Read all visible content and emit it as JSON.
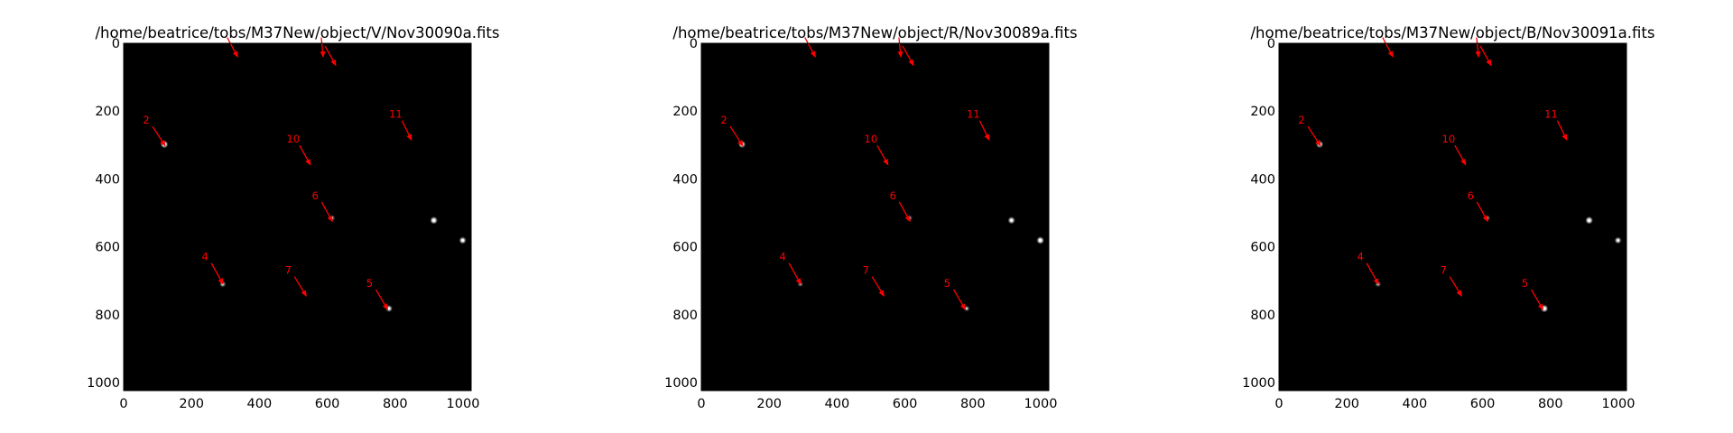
{
  "chart_data": [
    {
      "type": "image",
      "title": "/home/beatrice/tobs/M37New/object/V/Nov30090a.fits",
      "xlim": [
        0,
        1024
      ],
      "ylim": [
        1024,
        0
      ],
      "xticks": [
        "0",
        "200",
        "400",
        "600",
        "800",
        "1000"
      ],
      "yticks": [
        "0",
        "200",
        "400",
        "600",
        "800",
        "1000"
      ],
      "background_color": "#000000",
      "annotation_color": "#ff0000",
      "stars": [
        {
          "x": 120,
          "y": 298,
          "brightness": 1.0
        },
        {
          "x": 914,
          "y": 522,
          "brightness": 1.0
        },
        {
          "x": 999,
          "y": 581,
          "brightness": 0.9
        },
        {
          "x": 292,
          "y": 710,
          "brightness": 0.6
        },
        {
          "x": 782,
          "y": 782,
          "brightness": 0.8
        },
        {
          "x": 614,
          "y": 515,
          "brightness": 0.5
        }
      ],
      "annotations": [
        {
          "label": "",
          "text_xy": [
            292,
            -25
          ],
          "arrow_end": [
            336,
            40
          ]
        },
        {
          "label": "",
          "text_xy": [
            569,
            -25
          ],
          "arrow_end": [
            588,
            40
          ]
        },
        {
          "label": "",
          "text_xy": [
            580,
            0
          ],
          "arrow_end": [
            625,
            65
          ]
        },
        {
          "label": "2",
          "text_xy": [
            72,
            237
          ],
          "arrow_end": [
            122,
            302
          ]
        },
        {
          "label": "10",
          "text_xy": [
            505,
            293
          ],
          "arrow_end": [
            550,
            358
          ]
        },
        {
          "label": "11",
          "text_xy": [
            807,
            220
          ],
          "arrow_end": [
            848,
            285
          ]
        },
        {
          "label": "6",
          "text_xy": [
            570,
            460
          ],
          "arrow_end": [
            615,
            525
          ]
        },
        {
          "label": "4",
          "text_xy": [
            245,
            640
          ],
          "arrow_end": [
            293,
            710
          ]
        },
        {
          "label": "7",
          "text_xy": [
            490,
            680
          ],
          "arrow_end": [
            538,
            745
          ]
        },
        {
          "label": "5",
          "text_xy": [
            730,
            718
          ],
          "arrow_end": [
            778,
            785
          ]
        }
      ]
    },
    {
      "type": "image",
      "title": "/home/beatrice/tobs/M37New/object/R/Nov30089a.fits",
      "xlim": [
        0,
        1024
      ],
      "ylim": [
        1024,
        0
      ],
      "xticks": [
        "0",
        "200",
        "400",
        "600",
        "800",
        "1000"
      ],
      "yticks": [
        "0",
        "200",
        "400",
        "600",
        "800",
        "1000"
      ],
      "background_color": "#000000",
      "annotation_color": "#ff0000",
      "stars": [
        {
          "x": 120,
          "y": 298,
          "brightness": 0.9
        },
        {
          "x": 914,
          "y": 522,
          "brightness": 0.9
        },
        {
          "x": 999,
          "y": 581,
          "brightness": 1.0
        },
        {
          "x": 292,
          "y": 710,
          "brightness": 0.4
        },
        {
          "x": 782,
          "y": 782,
          "brightness": 0.5
        },
        {
          "x": 614,
          "y": 515,
          "brightness": 0.4
        }
      ],
      "annotations": [
        {
          "label": "",
          "text_xy": [
            292,
            -25
          ],
          "arrow_end": [
            336,
            40
          ]
        },
        {
          "label": "",
          "text_xy": [
            569,
            -25
          ],
          "arrow_end": [
            588,
            40
          ]
        },
        {
          "label": "",
          "text_xy": [
            580,
            0
          ],
          "arrow_end": [
            625,
            65
          ]
        },
        {
          "label": "2",
          "text_xy": [
            72,
            237
          ],
          "arrow_end": [
            122,
            302
          ]
        },
        {
          "label": "10",
          "text_xy": [
            505,
            293
          ],
          "arrow_end": [
            550,
            358
          ]
        },
        {
          "label": "11",
          "text_xy": [
            807,
            220
          ],
          "arrow_end": [
            848,
            285
          ]
        },
        {
          "label": "6",
          "text_xy": [
            570,
            460
          ],
          "arrow_end": [
            615,
            525
          ]
        },
        {
          "label": "4",
          "text_xy": [
            245,
            640
          ],
          "arrow_end": [
            293,
            710
          ]
        },
        {
          "label": "7",
          "text_xy": [
            490,
            680
          ],
          "arrow_end": [
            538,
            745
          ]
        },
        {
          "label": "5",
          "text_xy": [
            730,
            718
          ],
          "arrow_end": [
            778,
            785
          ]
        }
      ]
    },
    {
      "type": "image",
      "title": "/home/beatrice/tobs/M37New/object/B/Nov30091a.fits",
      "xlim": [
        0,
        1024
      ],
      "ylim": [
        1024,
        0
      ],
      "xticks": [
        "0",
        "200",
        "400",
        "600",
        "800",
        "1000"
      ],
      "yticks": [
        "0",
        "200",
        "400",
        "600",
        "800",
        "1000"
      ],
      "background_color": "#000000",
      "annotation_color": "#ff0000",
      "stars": [
        {
          "x": 120,
          "y": 298,
          "brightness": 0.9
        },
        {
          "x": 914,
          "y": 522,
          "brightness": 1.0
        },
        {
          "x": 999,
          "y": 581,
          "brightness": 0.8
        },
        {
          "x": 292,
          "y": 710,
          "brightness": 0.5
        },
        {
          "x": 782,
          "y": 782,
          "brightness": 1.0
        },
        {
          "x": 614,
          "y": 515,
          "brightness": 0.4
        }
      ],
      "annotations": [
        {
          "label": "",
          "text_xy": [
            292,
            -25
          ],
          "arrow_end": [
            336,
            40
          ]
        },
        {
          "label": "",
          "text_xy": [
            569,
            -25
          ],
          "arrow_end": [
            588,
            40
          ]
        },
        {
          "label": "",
          "text_xy": [
            580,
            0
          ],
          "arrow_end": [
            625,
            65
          ]
        },
        {
          "label": "2",
          "text_xy": [
            72,
            237
          ],
          "arrow_end": [
            122,
            302
          ]
        },
        {
          "label": "10",
          "text_xy": [
            505,
            293
          ],
          "arrow_end": [
            550,
            358
          ]
        },
        {
          "label": "11",
          "text_xy": [
            807,
            220
          ],
          "arrow_end": [
            848,
            285
          ]
        },
        {
          "label": "6",
          "text_xy": [
            570,
            460
          ],
          "arrow_end": [
            615,
            525
          ]
        },
        {
          "label": "4",
          "text_xy": [
            245,
            640
          ],
          "arrow_end": [
            293,
            710
          ]
        },
        {
          "label": "7",
          "text_xy": [
            490,
            680
          ],
          "arrow_end": [
            538,
            745
          ]
        },
        {
          "label": "5",
          "text_xy": [
            730,
            718
          ],
          "arrow_end": [
            778,
            785
          ]
        }
      ]
    }
  ]
}
